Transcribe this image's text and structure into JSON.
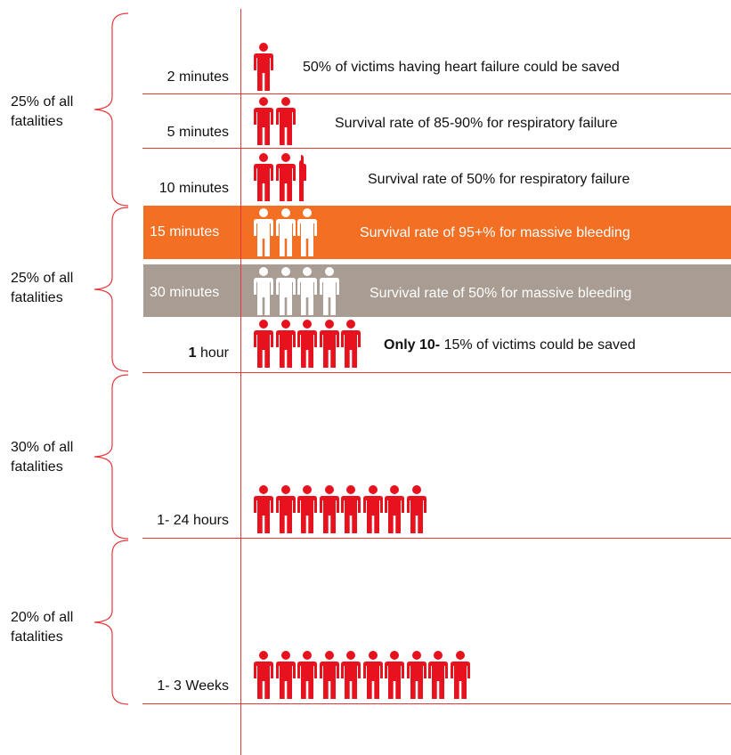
{
  "colors": {
    "red": "#e8111e",
    "orange": "#f26f23",
    "gray": "#a99c92",
    "white": "#ffffff",
    "line": "#e8363c"
  },
  "icons": {
    "person": "person-icon"
  },
  "groups": [
    {
      "label": "25% of all\nfatalities"
    },
    {
      "label": "25% of all\nfatalities"
    },
    {
      "label": "30% of all\nfatalities"
    },
    {
      "label": "20% of all\nfatalities"
    }
  ],
  "rows": [
    {
      "time": "2 minutes",
      "description": "50% of victims  having heart failure  could be saved",
      "figures": 1,
      "partial": 0,
      "band": "none",
      "figure_color": "red"
    },
    {
      "time": "5 minutes",
      "description": "Survival rate of 85-90%  for respiratory failure",
      "figures": 2,
      "partial": 0,
      "band": "none",
      "figure_color": "red"
    },
    {
      "time": "10 minutes",
      "description": "Survival rate of 50%  for respiratory failure",
      "figures": 2,
      "partial": 1,
      "band": "none",
      "figure_color": "red"
    },
    {
      "time": "15 minutes",
      "description": "Survival rate of 95+%  for massive bleeding",
      "figures": 3,
      "partial": 0,
      "band": "orange",
      "figure_color": "white"
    },
    {
      "time": "30 minutes",
      "description": "Survival rate of 50%  for massive bleeding",
      "figures": 4,
      "partial": 0,
      "band": "gray",
      "figure_color": "white"
    },
    {
      "time_bold": "1",
      "time": " hour",
      "description_bold": "Only 10-",
      "description": " 15% of victims could be saved",
      "figures": 5,
      "partial": 0,
      "band": "none",
      "figure_color": "red"
    },
    {
      "time": "1- 24 hours",
      "description": "",
      "figures": 8,
      "partial": 0,
      "band": "none",
      "figure_color": "red"
    },
    {
      "time": "1- 3 Weeks",
      "description": "",
      "figures": 10,
      "partial": 0,
      "band": "none",
      "figure_color": "red"
    }
  ]
}
